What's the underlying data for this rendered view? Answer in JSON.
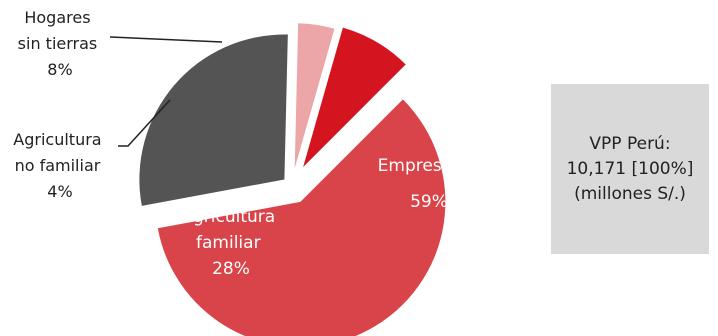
{
  "chart_data": {
    "type": "pie",
    "slices": [
      {
        "name": "Empresas",
        "value": 59,
        "label": "59%",
        "color": "#d9444a"
      },
      {
        "name": "Agricultura familiar",
        "value": 28,
        "label": "28%",
        "color": "#545454"
      },
      {
        "name": "Agricultura no familiar",
        "value": 4,
        "label": "4%",
        "color": "#eca6a8"
      },
      {
        "name": "Hogares sin tierras",
        "value": 8,
        "label": "8%",
        "color": "#d4151f"
      }
    ]
  },
  "labels": {
    "hogares": {
      "line1": "Hogares",
      "line2": "sin tierras",
      "pct": "8%"
    },
    "agri_nofam": {
      "line1": "Agricultura",
      "line2": "no familiar",
      "pct": "4%"
    },
    "agri_fam": {
      "line1": "Agricultura",
      "line2": "familiar",
      "pct": "28%"
    },
    "empresas": {
      "line1": "Empresas",
      "pct": "59%"
    }
  },
  "summary": {
    "line1": "VPP Perú:",
    "line2": "10,171 [100%]",
    "line3": "(millones S/.)"
  }
}
